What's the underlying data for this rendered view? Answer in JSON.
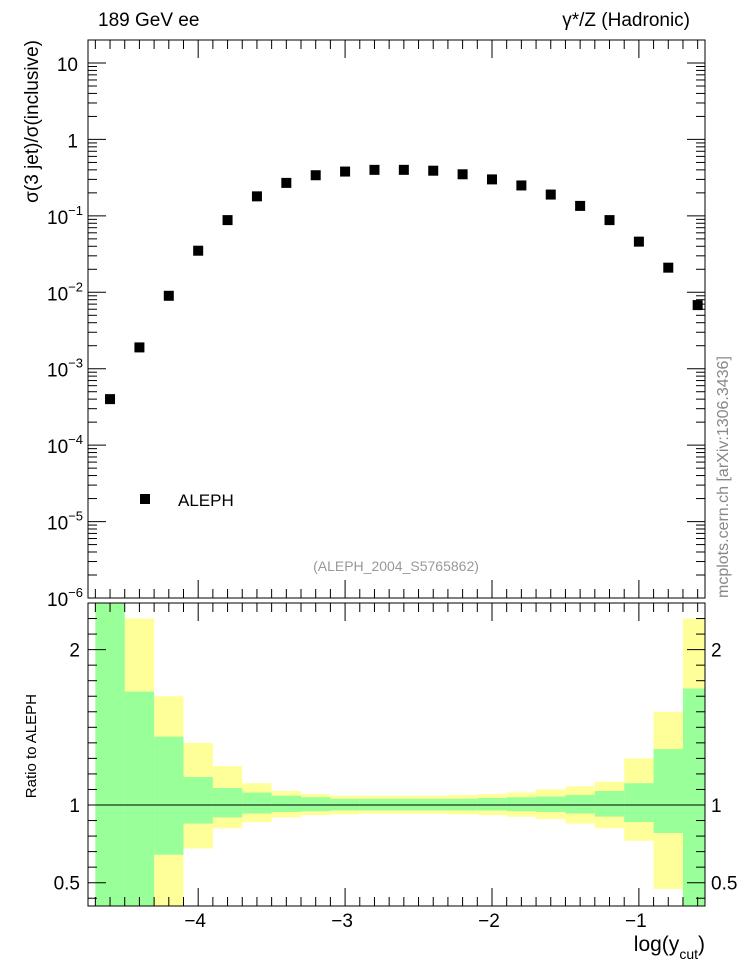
{
  "header": {
    "left": "189 GeV ee",
    "right": "γ*/Z (Hadronic)"
  },
  "watermark": "mcplots.cern.ch [arXiv:1306.3436]",
  "analysis_tag": "(ALEPH_2004_S5765862)",
  "colors": {
    "data_marker": "#000000",
    "band_outer": "#ffff99",
    "band_inner": "#99ff99",
    "analysis_tag": "#999999",
    "watermark": "#888888"
  },
  "chart_data": [
    {
      "type": "scatter",
      "panel": "main",
      "ylabel": "σ(3 jet)/σ(inclusive)",
      "yscale": "log",
      "ylim": [
        1e-06,
        20
      ],
      "xlim": [
        -4.75,
        -0.55
      ],
      "ytick_labels": [
        {
          "base": "10",
          "exp": "-6",
          "value": 1e-06
        },
        {
          "base": "10",
          "exp": "-5",
          "value": 1e-05
        },
        {
          "base": "10",
          "exp": "-4",
          "value": 0.0001
        },
        {
          "base": "10",
          "exp": "-3",
          "value": 0.001
        },
        {
          "base": "10",
          "exp": "-2",
          "value": 0.01
        },
        {
          "base": "10",
          "exp": "-1",
          "value": 0.1
        },
        {
          "base": "1",
          "exp": "",
          "value": 1
        },
        {
          "base": "10",
          "exp": "",
          "value": 10
        }
      ],
      "legend": {
        "position": "bottom-left",
        "entries": [
          "ALEPH"
        ]
      },
      "series": [
        {
          "name": "ALEPH",
          "x": [
            -4.6,
            -4.4,
            -4.2,
            -4.0,
            -3.8,
            -3.6,
            -3.4,
            -3.2,
            -3.0,
            -2.8,
            -2.6,
            -2.4,
            -2.2,
            -2.0,
            -1.8,
            -1.6,
            -1.4,
            -1.2,
            -1.0,
            -0.8,
            -0.6
          ],
          "y": [
            0.0004,
            0.0019,
            0.009,
            0.035,
            0.088,
            0.18,
            0.27,
            0.34,
            0.38,
            0.4,
            0.4,
            0.39,
            0.35,
            0.3,
            0.25,
            0.19,
            0.135,
            0.088,
            0.046,
            0.021,
            0.0068
          ]
        }
      ]
    },
    {
      "type": "area",
      "panel": "ratio",
      "ylabel": "Ratio to ALEPH",
      "xlabel": "log(y",
      "xlabel_sub": "cut",
      "xlabel_end": ")",
      "ylim": [
        0.35,
        2.3
      ],
      "xlim": [
        -4.75,
        -0.55
      ],
      "xtick_labels": [
        "−4",
        "−3",
        "−2",
        "−1"
      ],
      "xtick_values": [
        -4,
        -3,
        -2,
        -1
      ],
      "ytick_labels": [
        "0.5",
        "1",
        "2"
      ],
      "ytick_values": [
        0.5,
        1,
        2
      ],
      "bin_edges": [
        -4.7,
        -4.5,
        -4.3,
        -4.1,
        -3.9,
        -3.7,
        -3.5,
        -3.3,
        -3.1,
        -2.9,
        -2.7,
        -2.5,
        -2.3,
        -2.1,
        -1.9,
        -1.7,
        -1.5,
        -1.3,
        -1.1,
        -0.9,
        -0.7,
        -0.5
      ],
      "series": [
        {
          "band": "outer",
          "lower": [
            0.35,
            0.35,
            0.35,
            0.72,
            0.85,
            0.89,
            0.92,
            0.935,
            0.94,
            0.945,
            0.945,
            0.945,
            0.94,
            0.935,
            0.925,
            0.91,
            0.88,
            0.85,
            0.77,
            0.46,
            0.35
          ],
          "upper": [
            2.3,
            2.2,
            1.7,
            1.4,
            1.25,
            1.14,
            1.09,
            1.07,
            1.06,
            1.06,
            1.06,
            1.06,
            1.065,
            1.07,
            1.08,
            1.1,
            1.12,
            1.15,
            1.3,
            1.6,
            2.2
          ]
        },
        {
          "band": "inner",
          "lower": [
            0.35,
            0.35,
            0.68,
            0.88,
            0.92,
            0.945,
            0.955,
            0.96,
            0.965,
            0.965,
            0.965,
            0.965,
            0.965,
            0.965,
            0.96,
            0.955,
            0.945,
            0.925,
            0.89,
            0.82,
            0.35
          ],
          "upper": [
            2.3,
            1.73,
            1.44,
            1.18,
            1.11,
            1.08,
            1.06,
            1.05,
            1.04,
            1.04,
            1.04,
            1.04,
            1.04,
            1.045,
            1.05,
            1.055,
            1.065,
            1.09,
            1.14,
            1.36,
            1.75
          ]
        }
      ]
    }
  ]
}
